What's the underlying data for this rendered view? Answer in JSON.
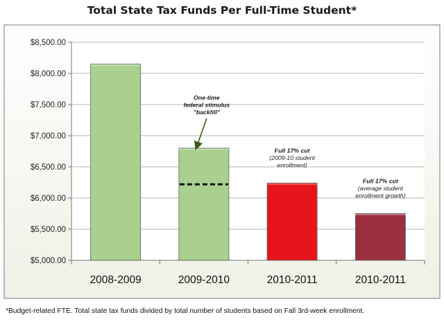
{
  "chart_data": {
    "type": "bar",
    "title": "Total State Tax Funds Per Full-Time Student*",
    "categories": [
      "2008-2009",
      "2009-2010",
      "2010-2011",
      "2010-2011"
    ],
    "values": [
      8150,
      6800,
      6240,
      5750
    ],
    "bar_colors": [
      "#a9d08e",
      "#a9d08e",
      "#e8141c",
      "#9b2f3e"
    ],
    "ylim": [
      5000,
      8500
    ],
    "yticks": [
      5000,
      5500,
      6000,
      6500,
      7000,
      7500,
      8000,
      8500
    ],
    "ytick_labels": [
      "$5,000.00",
      "$5,500.00",
      "$6,000.00",
      "$6,500.00",
      "$7,000.00",
      "$7,500.00",
      "$8,000.00",
      "$8,500.00"
    ],
    "xlabel": "",
    "ylabel": "",
    "grid": true,
    "dashed_marker": {
      "category_index": 1,
      "value": 6220
    },
    "annotations": [
      {
        "category_index": 1,
        "lines": [
          "One-time",
          "federal stimulus",
          "\"backfill\""
        ],
        "style": "bold-italic",
        "arrow": true
      },
      {
        "category_index": 2,
        "lines": [
          "Full 17% cut",
          "(2009-10 student",
          "enrollment)"
        ],
        "style": "italic"
      },
      {
        "category_index": 3,
        "lines": [
          "Full 17% cut",
          "(average student",
          "enrollment growth)"
        ],
        "style": "italic"
      }
    ],
    "footnote": "*Budget-related FTE. Total state tax funds divided by total number of students based on Fall 3rd-week enrollment."
  }
}
